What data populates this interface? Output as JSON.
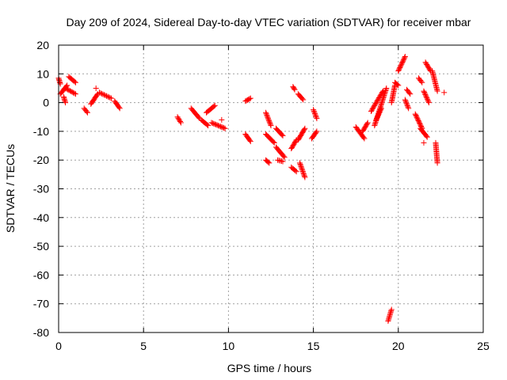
{
  "chart_data": {
    "type": "scatter",
    "title": "Day 209 of 2024, Sidereal Day-to-day VTEC variation (SDTVAR) for receiver mbar",
    "xlabel": "GPS time / hours",
    "ylabel": "SDTVAR / TECUs",
    "xlim": [
      0,
      25
    ],
    "ylim": [
      -80,
      20
    ],
    "xticks": [
      "0",
      "5",
      "10",
      "15",
      "20",
      "25"
    ],
    "yticks": [
      "20",
      "10",
      "0",
      "-10",
      "-20",
      "-30",
      "-40",
      "-50",
      "-60",
      "-70",
      "-80"
    ],
    "grid": true,
    "marker": "+",
    "marker_color": "#ff0000",
    "segments": [
      {
        "x0": 0.0,
        "y0": 8.5,
        "x1": 0.1,
        "y1": 6.5
      },
      {
        "x0": 0.1,
        "y0": 3.0,
        "x1": 0.5,
        "y1": 6.0
      },
      {
        "x0": 0.3,
        "y0": 2.0,
        "x1": 0.4,
        "y1": 0.0
      },
      {
        "x0": 0.4,
        "y0": 5.0,
        "x1": 1.0,
        "y1": 3.0
      },
      {
        "x0": 0.6,
        "y0": 9.0,
        "x1": 1.0,
        "y1": 7.0
      },
      {
        "x0": 1.5,
        "y0": -2.0,
        "x1": 1.7,
        "y1": -3.5
      },
      {
        "x0": 1.9,
        "y0": -0.5,
        "x1": 2.3,
        "y1": 3.0
      },
      {
        "x0": 2.2,
        "y0": 5.0,
        "x1": 2.2,
        "y1": 5.0
      },
      {
        "x0": 2.4,
        "y0": 3.5,
        "x1": 3.1,
        "y1": 1.5
      },
      {
        "x0": 3.3,
        "y0": 0.5,
        "x1": 3.6,
        "y1": -2.0
      },
      {
        "x0": 7.0,
        "y0": -5.0,
        "x1": 7.2,
        "y1": -7.0
      },
      {
        "x0": 7.8,
        "y0": -2.0,
        "x1": 8.3,
        "y1": -5.5
      },
      {
        "x0": 8.4,
        "y0": -6.0,
        "x1": 8.8,
        "y1": -8.0
      },
      {
        "x0": 8.7,
        "y0": -3.5,
        "x1": 9.2,
        "y1": -1.0
      },
      {
        "x0": 9.0,
        "y0": -7.0,
        "x1": 9.8,
        "y1": -9.0
      },
      {
        "x0": 9.6,
        "y0": -6.0,
        "x1": 9.6,
        "y1": -6.0
      },
      {
        "x0": 11.0,
        "y0": 0.5,
        "x1": 11.3,
        "y1": 1.5
      },
      {
        "x0": 11.0,
        "y0": -11.0,
        "x1": 11.3,
        "y1": -13.5
      },
      {
        "x0": 12.2,
        "y0": -3.5,
        "x1": 12.5,
        "y1": -8.0
      },
      {
        "x0": 12.2,
        "y0": -11.0,
        "x1": 12.7,
        "y1": -14.0
      },
      {
        "x0": 12.8,
        "y0": -9.0,
        "x1": 13.2,
        "y1": -11.5
      },
      {
        "x0": 12.2,
        "y0": -20.0,
        "x1": 12.4,
        "y1": -21.0
      },
      {
        "x0": 12.9,
        "y0": -20.0,
        "x1": 13.2,
        "y1": -20.5
      },
      {
        "x0": 12.8,
        "y0": -15.5,
        "x1": 13.3,
        "y1": -19.0
      },
      {
        "x0": 13.7,
        "y0": -16.0,
        "x1": 14.0,
        "y1": -13.0
      },
      {
        "x0": 13.7,
        "y0": -22.5,
        "x1": 14.0,
        "y1": -24.0
      },
      {
        "x0": 13.8,
        "y0": 5.5,
        "x1": 13.9,
        "y1": 4.5
      },
      {
        "x0": 14.1,
        "y0": 3.0,
        "x1": 14.4,
        "y1": 1.0
      },
      {
        "x0": 14.1,
        "y0": -13.0,
        "x1": 14.5,
        "y1": -9.0
      },
      {
        "x0": 14.2,
        "y0": -21.0,
        "x1": 14.5,
        "y1": -26.0
      },
      {
        "x0": 15.0,
        "y0": -2.5,
        "x1": 15.2,
        "y1": -5.5
      },
      {
        "x0": 14.9,
        "y0": -12.5,
        "x1": 15.2,
        "y1": -10.0
      },
      {
        "x0": 17.5,
        "y0": -8.5,
        "x1": 18.0,
        "y1": -12.5
      },
      {
        "x0": 17.9,
        "y0": -10.0,
        "x1": 18.2,
        "y1": -7.0
      },
      {
        "x0": 18.4,
        "y0": -3.0,
        "x1": 19.1,
        "y1": 4.0
      },
      {
        "x0": 18.6,
        "y0": -8.0,
        "x1": 19.3,
        "y1": 5.0
      },
      {
        "x0": 18.7,
        "y0": -6.0,
        "x1": 19.0,
        "y1": -2.0
      },
      {
        "x0": 19.4,
        "y0": -76.0,
        "x1": 19.6,
        "y1": -72.0
      },
      {
        "x0": 19.6,
        "y0": 0.0,
        "x1": 19.8,
        "y1": 6.0
      },
      {
        "x0": 19.8,
        "y0": 7.0,
        "x1": 20.0,
        "y1": 6.0
      },
      {
        "x0": 20.0,
        "y0": 11.0,
        "x1": 20.4,
        "y1": 16.0
      },
      {
        "x0": 20.4,
        "y0": 1.0,
        "x1": 20.6,
        "y1": -2.0
      },
      {
        "x0": 20.5,
        "y0": 4.5,
        "x1": 20.7,
        "y1": 3.0
      },
      {
        "x0": 21.2,
        "y0": 8.5,
        "x1": 21.4,
        "y1": 7.0
      },
      {
        "x0": 21.0,
        "y0": -4.0,
        "x1": 21.4,
        "y1": -9.0
      },
      {
        "x0": 21.3,
        "y0": -9.0,
        "x1": 21.7,
        "y1": -12.0
      },
      {
        "x0": 21.5,
        "y0": -14.0,
        "x1": 21.5,
        "y1": -14.0
      },
      {
        "x0": 21.6,
        "y0": 14.0,
        "x1": 21.9,
        "y1": 11.0
      },
      {
        "x0": 21.5,
        "y0": 4.0,
        "x1": 21.8,
        "y1": 0.0
      },
      {
        "x0": 22.0,
        "y0": 11.0,
        "x1": 22.3,
        "y1": 4.0
      },
      {
        "x0": 22.2,
        "y0": -14.0,
        "x1": 22.3,
        "y1": -21.0
      },
      {
        "x0": 22.7,
        "y0": 3.5,
        "x1": 22.7,
        "y1": 3.5
      }
    ]
  }
}
